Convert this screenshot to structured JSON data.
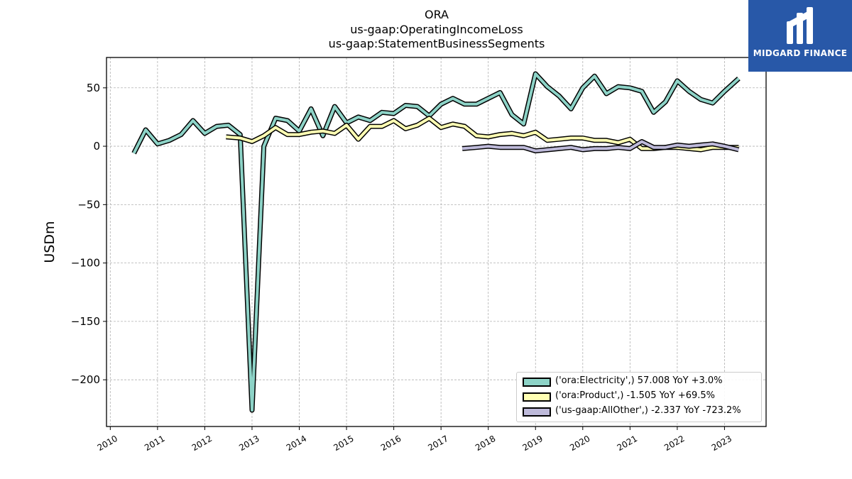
{
  "title_lines": [
    "ORA",
    "us-gaap:OperatingIncomeLoss",
    "us-gaap:StatementBusinessSegments"
  ],
  "logo": {
    "text": "MIDGARD FINANCE",
    "icon": "midgard-logo-icon",
    "color": "#2858a8"
  },
  "chart_data": {
    "type": "line",
    "ylabel": "USDm",
    "xlabel": "",
    "ylim": [
      -240,
      76
    ],
    "xlim": [
      2009.92,
      2023.88
    ],
    "yticks": [
      50,
      0,
      -50,
      -100,
      -150,
      -200
    ],
    "ytick_labels": [
      "50",
      "0",
      "−50",
      "−100",
      "−150",
      "−200"
    ],
    "xticks": [
      2010,
      2011,
      2012,
      2013,
      2014,
      2015,
      2016,
      2017,
      2018,
      2019,
      2020,
      2021,
      2022,
      2023
    ],
    "xtick_labels": [
      "2010",
      "2011",
      "2012",
      "2013",
      "2014",
      "2015",
      "2016",
      "2017",
      "2018",
      "2019",
      "2020",
      "2021",
      "2022",
      "2023"
    ],
    "grid": true,
    "legend_position": "lower-right",
    "series": [
      {
        "name": "('ora:Electricity',) 57.008 YoY +3.0%",
        "color": "#8dd3c7",
        "points": [
          [
            2010.5,
            -6
          ],
          [
            2010.75,
            14
          ],
          [
            2011.0,
            2
          ],
          [
            2011.25,
            5
          ],
          [
            2011.5,
            10
          ],
          [
            2011.75,
            22
          ],
          [
            2012.0,
            11
          ],
          [
            2012.25,
            17
          ],
          [
            2012.5,
            18
          ],
          [
            2012.75,
            10
          ],
          [
            2013.0,
            -226
          ],
          [
            2013.25,
            0
          ],
          [
            2013.5,
            24
          ],
          [
            2013.75,
            22
          ],
          [
            2014.0,
            13
          ],
          [
            2014.25,
            32
          ],
          [
            2014.5,
            9
          ],
          [
            2014.75,
            34
          ],
          [
            2015.0,
            20
          ],
          [
            2015.25,
            25
          ],
          [
            2015.5,
            22
          ],
          [
            2015.75,
            29
          ],
          [
            2016.0,
            28
          ],
          [
            2016.25,
            35
          ],
          [
            2016.5,
            34
          ],
          [
            2016.75,
            26
          ],
          [
            2017.0,
            36
          ],
          [
            2017.25,
            41
          ],
          [
            2017.5,
            36
          ],
          [
            2017.75,
            36
          ],
          [
            2018.0,
            41
          ],
          [
            2018.25,
            46
          ],
          [
            2018.5,
            27
          ],
          [
            2018.75,
            19
          ],
          [
            2019.0,
            62
          ],
          [
            2019.25,
            51
          ],
          [
            2019.5,
            43
          ],
          [
            2019.75,
            32
          ],
          [
            2020.0,
            50
          ],
          [
            2020.25,
            60
          ],
          [
            2020.5,
            45
          ],
          [
            2020.75,
            51
          ],
          [
            2021.0,
            50
          ],
          [
            2021.25,
            47
          ],
          [
            2021.5,
            29
          ],
          [
            2021.75,
            38
          ],
          [
            2022.0,
            56
          ],
          [
            2022.25,
            47
          ],
          [
            2022.5,
            40
          ],
          [
            2022.75,
            37
          ],
          [
            2023.0,
            47
          ],
          [
            2023.3,
            58
          ]
        ]
      },
      {
        "name": "('ora:Product',) -1.505 YoY +69.5%",
        "color": "#ffffb3",
        "points": [
          [
            2012.45,
            8
          ],
          [
            2012.75,
            7
          ],
          [
            2013.0,
            4
          ],
          [
            2013.25,
            9
          ],
          [
            2013.5,
            16
          ],
          [
            2013.75,
            10
          ],
          [
            2014.0,
            10
          ],
          [
            2014.25,
            12
          ],
          [
            2014.5,
            13
          ],
          [
            2014.75,
            11
          ],
          [
            2015.0,
            18
          ],
          [
            2015.25,
            6
          ],
          [
            2015.5,
            17
          ],
          [
            2015.75,
            17
          ],
          [
            2016.0,
            22
          ],
          [
            2016.25,
            15
          ],
          [
            2016.5,
            18
          ],
          [
            2016.75,
            24
          ],
          [
            2017.0,
            16
          ],
          [
            2017.25,
            19
          ],
          [
            2017.5,
            17
          ],
          [
            2017.75,
            9
          ],
          [
            2018.0,
            8
          ],
          [
            2018.25,
            10
          ],
          [
            2018.5,
            11
          ],
          [
            2018.75,
            9
          ],
          [
            2019.0,
            12
          ],
          [
            2019.25,
            5
          ],
          [
            2019.5,
            6
          ],
          [
            2019.75,
            7
          ],
          [
            2020.0,
            7
          ],
          [
            2020.25,
            5
          ],
          [
            2020.5,
            5
          ],
          [
            2020.75,
            3
          ],
          [
            2021.0,
            6
          ],
          [
            2021.25,
            -2
          ],
          [
            2021.5,
            -2
          ],
          [
            2021.75,
            -1
          ],
          [
            2022.0,
            -1
          ],
          [
            2022.25,
            -2
          ],
          [
            2022.5,
            -3
          ],
          [
            2022.75,
            -1
          ],
          [
            2023.0,
            -1
          ],
          [
            2023.3,
            -1
          ]
        ]
      },
      {
        "name": "('us-gaap:AllOther',) -2.337 YoY -723.2%",
        "color": "#bebada",
        "points": [
          [
            2017.45,
            -2
          ],
          [
            2017.75,
            -1
          ],
          [
            2018.0,
            0
          ],
          [
            2018.25,
            -1
          ],
          [
            2018.5,
            -1
          ],
          [
            2018.75,
            -1
          ],
          [
            2019.0,
            -4
          ],
          [
            2019.25,
            -3
          ],
          [
            2019.5,
            -2
          ],
          [
            2019.75,
            -1
          ],
          [
            2020.0,
            -3
          ],
          [
            2020.25,
            -2
          ],
          [
            2020.5,
            -2
          ],
          [
            2020.75,
            -1
          ],
          [
            2021.0,
            -2
          ],
          [
            2021.25,
            4
          ],
          [
            2021.5,
            -1
          ],
          [
            2021.75,
            -1
          ],
          [
            2022.0,
            1
          ],
          [
            2022.25,
            0
          ],
          [
            2022.5,
            1
          ],
          [
            2022.75,
            2
          ],
          [
            2023.0,
            0
          ],
          [
            2023.3,
            -3
          ]
        ]
      }
    ]
  }
}
